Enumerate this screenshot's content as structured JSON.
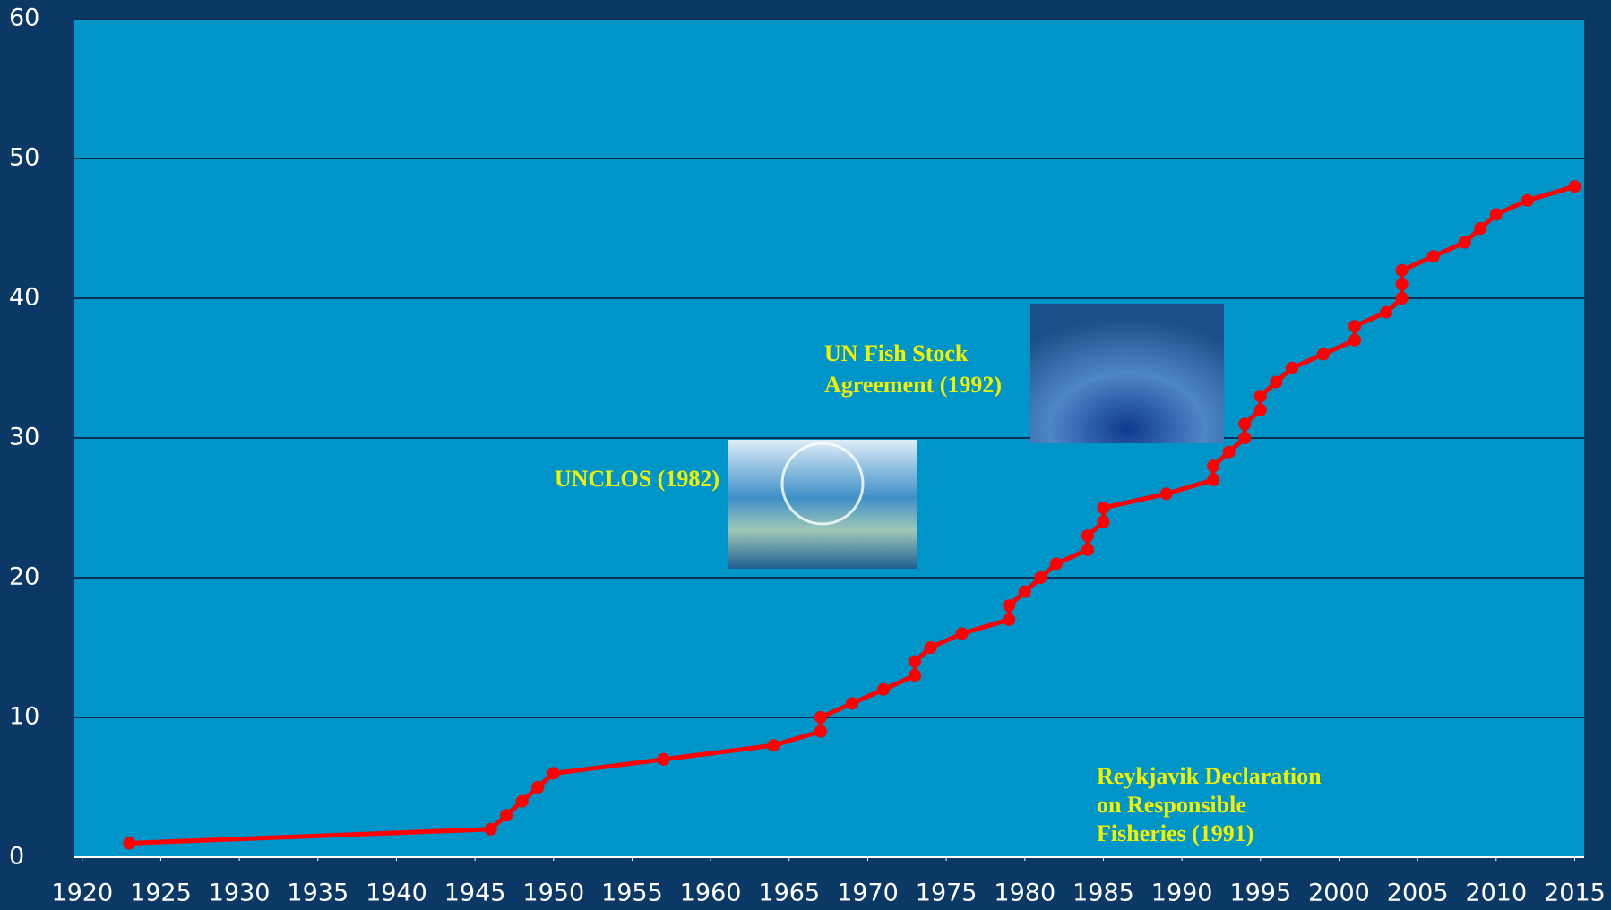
{
  "chart_data": {
    "type": "line",
    "x": [
      1923,
      1946,
      1947,
      1948,
      1949,
      1950,
      1957,
      1964,
      1967,
      1967,
      1969,
      1971,
      1973,
      1973,
      1974,
      1976,
      1979,
      1979,
      1980,
      1981,
      1982,
      1984,
      1984,
      1985,
      1985,
      1989,
      1992,
      1992,
      1993,
      1994,
      1994,
      1995,
      1995,
      1996,
      1997,
      1999,
      2001,
      2001,
      2003,
      2004,
      2004,
      2004,
      2006,
      2008,
      2009,
      2010,
      2012,
      2015
    ],
    "values": [
      1,
      2,
      3,
      4,
      5,
      6,
      7,
      8,
      9,
      10,
      11,
      12,
      13,
      14,
      15,
      16,
      17,
      18,
      19,
      20,
      21,
      22,
      23,
      24,
      25,
      26,
      27,
      28,
      29,
      30,
      31,
      32,
      33,
      34,
      35,
      36,
      37,
      38,
      39,
      40,
      41,
      42,
      43,
      44,
      45,
      46,
      47,
      48
    ],
    "color": "#ff0000",
    "xlim": [
      1919.5,
      2015.6
    ],
    "xticks": [
      1920,
      1925,
      1930,
      1935,
      1940,
      1945,
      1950,
      1955,
      1960,
      1965,
      1970,
      1975,
      1980,
      1985,
      1990,
      1995,
      2000,
      2005,
      2010,
      2015
    ],
    "ylim": [
      0,
      60
    ],
    "yticks": [
      0,
      10,
      20,
      30,
      40,
      50,
      60
    ],
    "grid": true,
    "annotations": [
      [
        "UNCLOS (1982)"
      ],
      [
        "UN Fish Stock",
        "Agreement (1992)"
      ],
      [
        "Reykjavik Declaration",
        "on Responsible",
        "Fisheries (1991)"
      ]
    ]
  }
}
